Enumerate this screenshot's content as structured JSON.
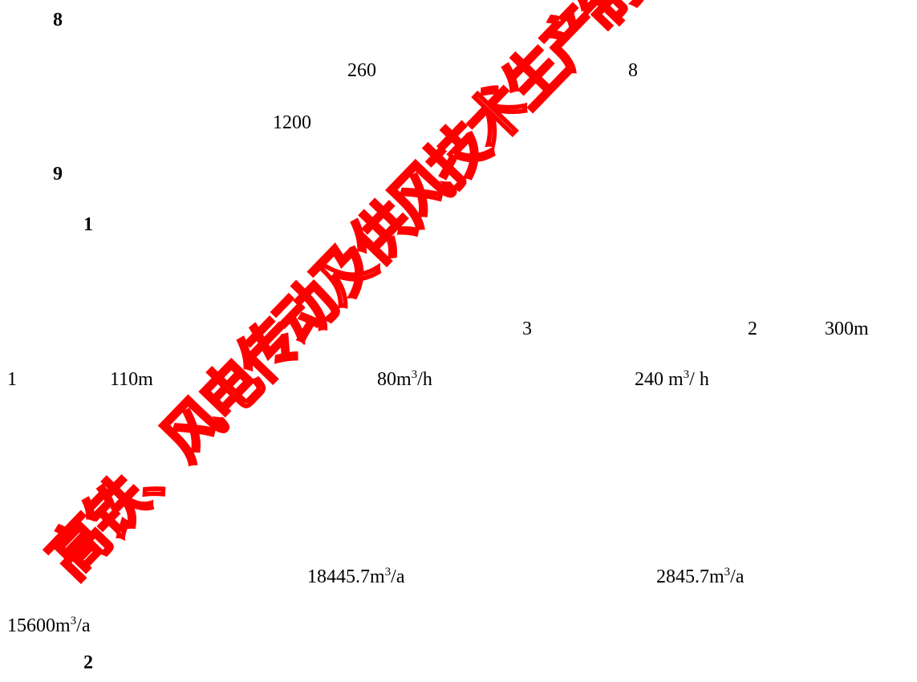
{
  "sections": {
    "s8": "8",
    "s9": "9",
    "s9_1": "1",
    "s9_2": "2"
  },
  "para8": {
    "v1": "260",
    "v2": "8",
    "v3": "1200"
  },
  "para9": {
    "r1_a": "3",
    "r1_b": "2",
    "r1_c": "300m",
    "r2_a": "1",
    "r2_b": "110m",
    "r2_c_num": "80m",
    "r2_c_sup": "3",
    "r2_c_unit": "/h",
    "r2_d_num": "240 m",
    "r2_d_sup": "3",
    "r2_d_unit": "/ h"
  },
  "para10": {
    "a_num": "18445.7m",
    "a_sup": "3",
    "a_unit": "/a",
    "b_num": "2845.7m",
    "b_sup": "3",
    "b_unit": "/a",
    "c_num": "15600m",
    "c_sup": "3",
    "c_unit": "/a"
  },
  "watermark": {
    "text": "高铁、风电传动及供风技术生产制",
    "color": "#ff0000"
  }
}
